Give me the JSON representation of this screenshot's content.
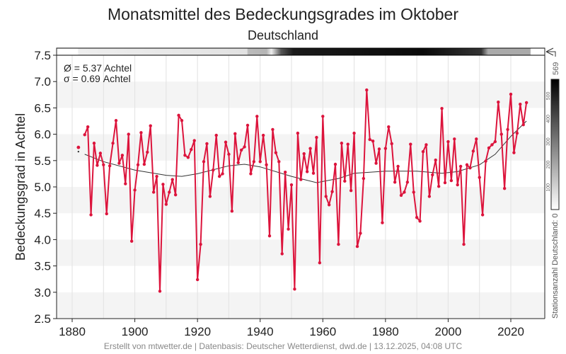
{
  "chart_data": {
    "type": "line",
    "title": "Monatsmittel des Bedeckungsgrades im Oktober",
    "subtitle": "Deutschland",
    "xlabel": "",
    "ylabel": "Bedeckungsgrad in Achtel",
    "xlim": [
      1876,
      2031
    ],
    "ylim": [
      2.5,
      7.5
    ],
    "xticks": [
      1880,
      1900,
      1920,
      1940,
      1960,
      1980,
      2000,
      2020
    ],
    "yticks": [
      "2.5",
      "3.0",
      "3.5",
      "4.0",
      "4.5",
      "5.0",
      "5.5",
      "6.0",
      "6.5",
      "7.0",
      "7.5"
    ],
    "grid": true,
    "stats": [
      "Ø = 5.37 Achtel",
      "σ = 0.69 Achtel"
    ],
    "series": [
      {
        "name": "Monatsmittel",
        "color": "#dc143c",
        "isolated": {
          "x": 1882,
          "y": 5.75
        },
        "x_start": 1884,
        "values": [
          5.99,
          6.14,
          4.47,
          5.83,
          5.41,
          5.64,
          5.42,
          4.49,
          5.4,
          5.83,
          6.26,
          5.45,
          5.6,
          5.06,
          6.0,
          3.97,
          4.94,
          5.42,
          6.03,
          5.43,
          5.66,
          6.16,
          4.9,
          5.2,
          3.02,
          5.05,
          4.67,
          4.9,
          5.14,
          4.85,
          6.36,
          6.26,
          5.6,
          5.56,
          5.71,
          5.88,
          3.24,
          3.91,
          5.48,
          5.82,
          4.82,
          5.32,
          5.98,
          5.2,
          5.25,
          5.85,
          5.62,
          4.54,
          6.01,
          5.46,
          5.7,
          5.76,
          6.17,
          5.25,
          5.48,
          6.34,
          5.48,
          5.98,
          5.42,
          4.07,
          6.09,
          5.65,
          5.48,
          3.73,
          5.28,
          4.2,
          5.04,
          3.06,
          6.02,
          5.14,
          5.63,
          5.29,
          5.73,
          5.26,
          5.94,
          3.56,
          6.34,
          4.82,
          4.66,
          4.91,
          5.43,
          3.91,
          5.83,
          5.11,
          5.81,
          4.93,
          6.02,
          3.87,
          4.12,
          5.16,
          6.84,
          5.9,
          5.87,
          5.45,
          5.72,
          4.32,
          5.73,
          6.14,
          5.82,
          5.09,
          5.39,
          4.84,
          4.9,
          5.09,
          5.81,
          4.9,
          4.42,
          4.35,
          5.67,
          5.8,
          4.82,
          5.23,
          5.51,
          5.01,
          6.49,
          5.08,
          5.86,
          5.12,
          5.91,
          5.04,
          5.39,
          3.91,
          5.42,
          5.36,
          5.68,
          5.91,
          5.18,
          4.47,
          5.49,
          5.74,
          5.8,
          5.86,
          6.61,
          6.0,
          4.97,
          6.09,
          6.76,
          5.65,
          6.02,
          6.57,
          6.18,
          6.6
        ]
      },
      {
        "name": "Trend",
        "color": "#333333",
        "isolated": {
          "x": 1882,
          "y": 5.67
        },
        "x": [
          1884,
          1890,
          1900,
          1910,
          1915,
          1920,
          1930,
          1935,
          1940,
          1950,
          1958,
          1965,
          1970,
          1980,
          1990,
          1998,
          2003,
          2010,
          2015,
          2020,
          2025
        ],
        "y": [
          5.62,
          5.48,
          5.32,
          5.22,
          5.2,
          5.25,
          5.4,
          5.43,
          5.38,
          5.2,
          5.08,
          5.16,
          5.26,
          5.3,
          5.3,
          5.26,
          5.29,
          5.42,
          5.62,
          5.96,
          6.25
        ]
      }
    ],
    "station_bar": {
      "label": "Stationsanzahl Deutschland: 0",
      "max_label": "569",
      "ticks": [
        "100",
        "200",
        "300",
        "400",
        "500"
      ],
      "range": [
        0,
        569
      ]
    }
  },
  "footer": "Erstellt von mtwetter.de | Datenbasis: Deutscher Wetterdienst, dwd.de | 13.12.2025, 04:08 UTC"
}
